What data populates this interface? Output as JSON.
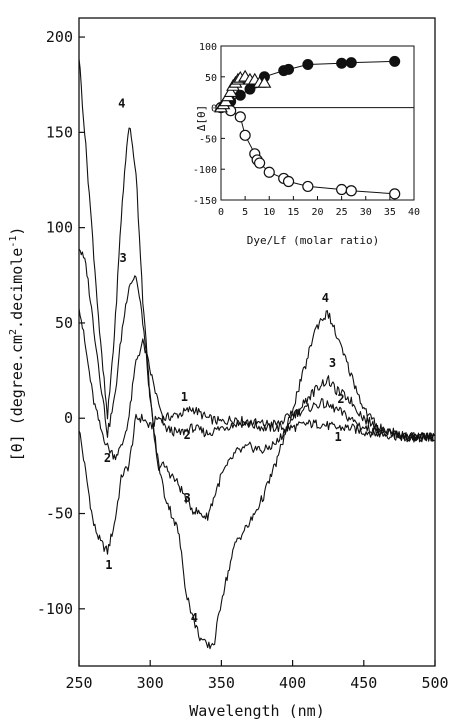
{
  "chart_data": [
    {
      "type": "line",
      "title": "",
      "xlabel": "Wavelength (nm)",
      "ylabel_text": "[θ] (degree.cm",
      "ylabel_sup1": "2",
      "ylabel_mid": ".decimole",
      "ylabel_sup2": "-1",
      "ylabel_end": ")",
      "xlim": [
        250,
        500
      ],
      "ylim": [
        -130,
        210
      ],
      "xticks": [
        250,
        300,
        350,
        400,
        450,
        500
      ],
      "yticks": [
        -100,
        -50,
        0,
        50,
        100,
        150,
        200
      ],
      "grid": false,
      "series": [
        {
          "name": "1",
          "x": [
            250,
            255,
            260,
            265,
            270,
            275,
            280,
            285,
            290,
            295,
            300,
            305,
            310,
            320,
            330,
            340,
            350,
            360,
            370,
            380,
            390,
            400,
            410,
            420,
            430,
            440,
            450,
            460,
            480,
            500
          ],
          "y": [
            -5,
            -30,
            -55,
            -65,
            -70,
            -55,
            -30,
            -25,
            0,
            0,
            -5,
            0,
            0,
            2,
            5,
            0,
            -2,
            0,
            -3,
            -5,
            -5,
            -5,
            -3,
            -3,
            -5,
            -5,
            -7,
            -8,
            -10,
            -10
          ]
        },
        {
          "name": "2",
          "x": [
            250,
            255,
            260,
            265,
            270,
            275,
            280,
            285,
            290,
            295,
            300,
            310,
            320,
            330,
            340,
            350,
            360,
            370,
            380,
            390,
            400,
            410,
            420,
            430,
            440,
            450,
            460,
            480,
            500
          ],
          "y": [
            60,
            35,
            10,
            -5,
            -15,
            -20,
            -15,
            0,
            30,
            40,
            25,
            -5,
            -8,
            -5,
            -8,
            -5,
            -3,
            -2,
            -3,
            -3,
            2,
            5,
            8,
            5,
            0,
            -5,
            -7,
            -10,
            -10
          ]
        },
        {
          "name": "3",
          "x": [
            250,
            255,
            260,
            265,
            270,
            275,
            280,
            285,
            290,
            295,
            300,
            305,
            310,
            315,
            320,
            325,
            330,
            340,
            350,
            360,
            370,
            380,
            390,
            400,
            410,
            420,
            425,
            430,
            440,
            450,
            460,
            480,
            500
          ],
          "y": [
            90,
            80,
            50,
            20,
            -8,
            10,
            45,
            70,
            75,
            50,
            10,
            -25,
            -25,
            -30,
            -35,
            -42,
            -48,
            -52,
            -30,
            -18,
            -15,
            -17,
            -12,
            0,
            10,
            18,
            20,
            15,
            10,
            0,
            -5,
            -10,
            -10
          ]
        },
        {
          "name": "4",
          "x": [
            250,
            255,
            260,
            265,
            270,
            275,
            280,
            285,
            290,
            295,
            300,
            305,
            310,
            320,
            325,
            330,
            335,
            340,
            345,
            350,
            360,
            370,
            380,
            390,
            400,
            410,
            415,
            420,
            425,
            430,
            440,
            450,
            460,
            480,
            500
          ],
          "y": [
            190,
            140,
            90,
            40,
            0,
            45,
            110,
            155,
            130,
            60,
            10,
            -20,
            -40,
            -60,
            -90,
            -105,
            -115,
            -120,
            -118,
            -95,
            -65,
            -55,
            -40,
            -20,
            5,
            30,
            45,
            52,
            55,
            45,
            25,
            5,
            -5,
            -10,
            -10
          ]
        }
      ],
      "curve_labels": [
        {
          "text": "4",
          "x": 280,
          "y": 163
        },
        {
          "text": "3",
          "x": 281,
          "y": 82
        },
        {
          "text": "2",
          "x": 270,
          "y": -23
        },
        {
          "text": "1",
          "x": 271,
          "y": -79
        },
        {
          "text": "1",
          "x": 324,
          "y": 9
        },
        {
          "text": "2",
          "x": 326,
          "y": -11
        },
        {
          "text": "3",
          "x": 326,
          "y": -44
        },
        {
          "text": "4",
          "x": 331,
          "y": -107
        },
        {
          "text": "4",
          "x": 423,
          "y": 61
        },
        {
          "text": "3",
          "x": 428,
          "y": 27
        },
        {
          "text": "2",
          "x": 434,
          "y": 8
        },
        {
          "text": "1",
          "x": 432,
          "y": -12
        }
      ]
    },
    {
      "type": "scatter",
      "title": "",
      "xlabel": "Dye/Lf (molar ratio)",
      "ylabel": "Δ[θ]",
      "xlim": [
        0,
        40
      ],
      "ylim": [
        -150,
        100
      ],
      "xticks": [
        0,
        5,
        10,
        15,
        20,
        25,
        30,
        35,
        40
      ],
      "yticks": [
        -150,
        -100,
        -50,
        0,
        50,
        100
      ],
      "grid": false,
      "series": [
        {
          "marker": "filled-circle",
          "x": [
            0,
            2,
            4,
            6,
            7,
            9,
            13,
            14,
            18,
            25,
            27,
            36
          ],
          "y": [
            0,
            10,
            20,
            30,
            40,
            50,
            60,
            62,
            70,
            72,
            73,
            75
          ]
        },
        {
          "marker": "open-circle",
          "x": [
            0,
            2,
            4,
            5,
            7,
            7.5,
            8,
            10,
            13,
            14,
            18,
            25,
            27,
            36
          ],
          "y": [
            0,
            -5,
            -15,
            -45,
            -75,
            -85,
            -90,
            -105,
            -115,
            -120,
            -128,
            -133,
            -135,
            -140
          ]
        },
        {
          "marker": "open-triangle",
          "x": [
            0,
            0.5,
            1,
            1.5,
            2,
            2.5,
            3,
            3.5,
            4,
            5,
            6,
            7,
            8,
            9
          ],
          "y": [
            0,
            5,
            10,
            18,
            25,
            35,
            40,
            45,
            48,
            50,
            45,
            45,
            40,
            40
          ]
        }
      ]
    }
  ]
}
